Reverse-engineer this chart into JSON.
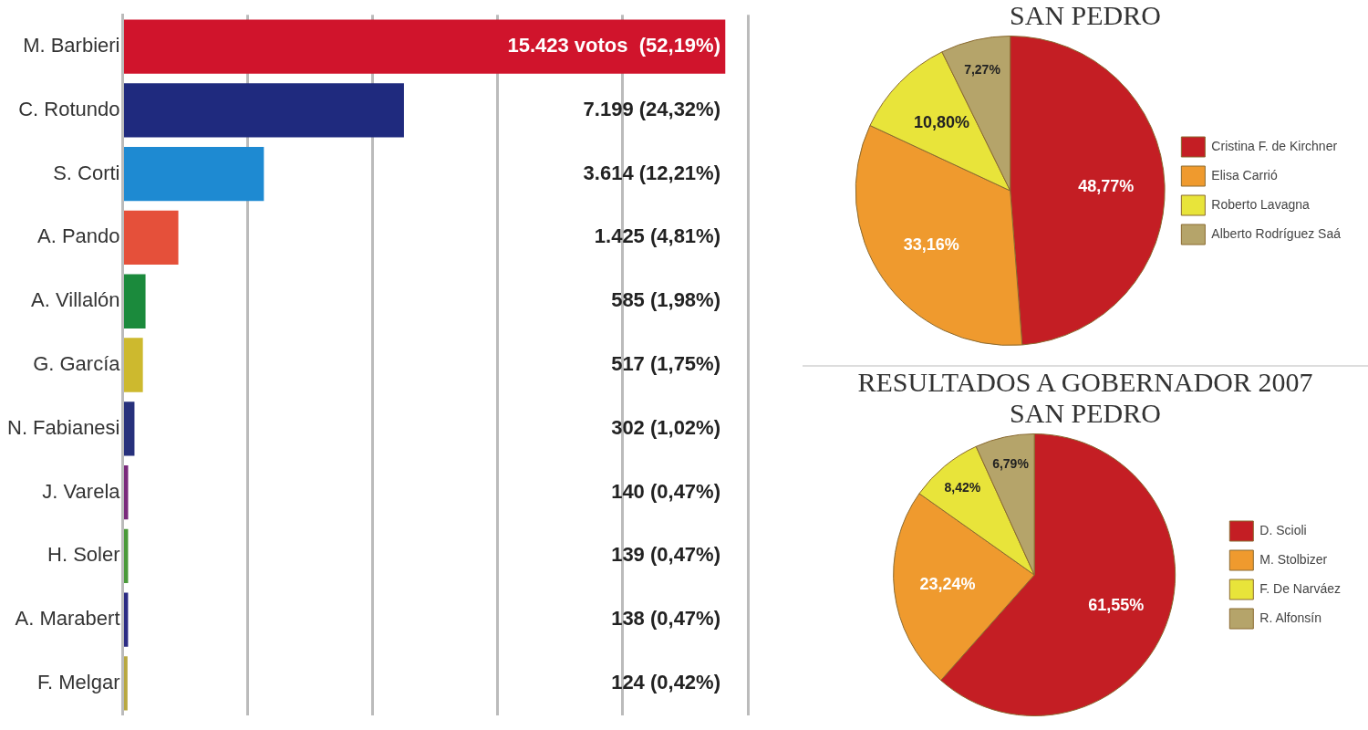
{
  "chart_data": [
    {
      "type": "bar",
      "orientation": "horizontal",
      "categories": [
        "M. Barbieri",
        "C. Rotundo",
        "S. Corti",
        "A. Pando",
        "A. Villalón",
        "G. García",
        "N. Fabianesi",
        "J. Varela",
        "H. Soler",
        "A. Marabert",
        "F. Melgar"
      ],
      "values": [
        15423,
        7199,
        3614,
        1425,
        585,
        517,
        302,
        140,
        139,
        138,
        124
      ],
      "colors": [
        "#d0142c",
        "#1f2a7e",
        "#1e8ad2",
        "#e5503a",
        "#1b8a3c",
        "#cdb92e",
        "#27317c",
        "#7a2a7c",
        "#4a9a3a",
        "#2c2c84",
        "#b8a840"
      ],
      "value_labels": [
        "15.423 votos  (52,19%)",
        "7.199 (24,32%)",
        "3.614 (12,21%)",
        "1.425 (4,81%)",
        "585 (1,98%)",
        "517 (1,75%)",
        "302 (1,02%)",
        "140 (0,47%)",
        "139 (0,47%)",
        "138 (0,47%)",
        "124 (0,42%)"
      ],
      "xlim": [
        0,
        16000
      ],
      "xticks": [
        {
          "value": 0,
          "label": null
        },
        {
          "value": 3200,
          "label": null
        },
        {
          "value": 6400,
          "label": null
        },
        {
          "value": 9600,
          "label": null
        },
        {
          "value": 12800,
          "label": null
        },
        {
          "value": 16000,
          "label": null
        }
      ],
      "grid": "x",
      "tick_labels": "y"
    },
    {
      "type": "pie",
      "title": "SAN PEDRO",
      "categories": [
        "Cristina F. de Kirchner",
        "Elisa Carrió",
        "Roberto Lavagna",
        "Alberto Rodríguez Saá"
      ],
      "values": [
        48.77,
        33.16,
        10.8,
        7.27
      ],
      "colors": [
        "#c41e24",
        "#ef9a2e",
        "#e8e43a",
        "#b5a46a"
      ],
      "value_labels": [
        "48,77%",
        "33,16%",
        "10,80%",
        "7,27%"
      ],
      "legend": "right"
    },
    {
      "type": "pie",
      "title": "RESULTADOS A GOBERNADOR 2007\nSAN PEDRO",
      "categories": [
        "D. Scioli",
        "M. Stolbizer",
        "F. De Narváez",
        "R. Alfonsín"
      ],
      "values": [
        61.55,
        23.24,
        8.42,
        6.79
      ],
      "colors": [
        "#c41e24",
        "#ef9a2e",
        "#e8e43a",
        "#b5a46a"
      ],
      "value_labels": [
        "61,55%",
        "23,24%",
        "8,42%",
        "6,79%"
      ],
      "legend": "right"
    }
  ]
}
